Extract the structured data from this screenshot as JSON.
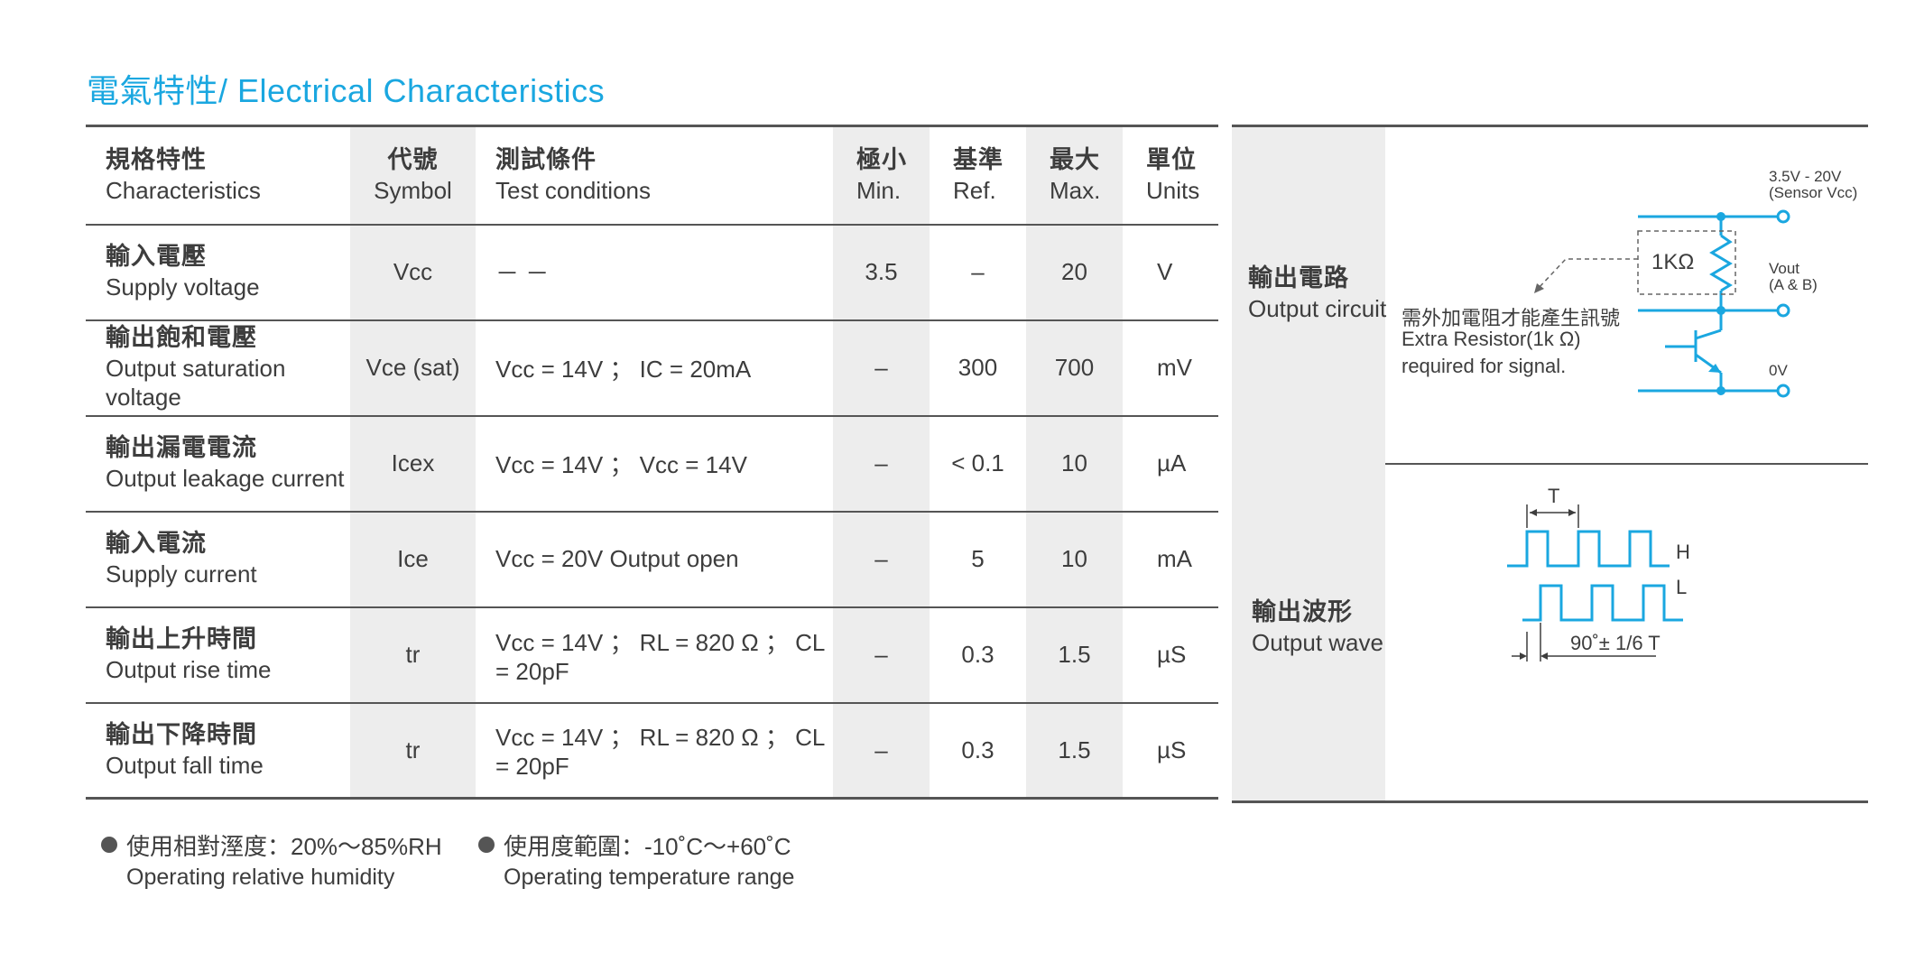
{
  "title": "電氣特性/ Electrical Characteristics",
  "table": {
    "headers": {
      "characteristics": {
        "zh": "規格特性",
        "en": "Characteristics"
      },
      "symbol": {
        "zh": "代號",
        "en": "Symbol"
      },
      "conditions": {
        "zh": "測試條件",
        "en": "Test conditions"
      },
      "min": {
        "zh": "極小",
        "en": "Min."
      },
      "ref": {
        "zh": "基準",
        "en": "Ref."
      },
      "max": {
        "zh": "最大",
        "en": "Max."
      },
      "units": {
        "zh": "單位",
        "en": "Units"
      }
    },
    "rows": [
      {
        "zh": "輸入電壓",
        "en": "Supply voltage",
        "symbol": "Vcc",
        "conditions": "－ －",
        "min": "3.5",
        "ref": "–",
        "max": "20",
        "unit": "V"
      },
      {
        "zh": "輸出飽和電壓",
        "en": "Output saturation voltage",
        "symbol": "Vce (sat)",
        "conditions": "Vcc = 14V ； IC = 20mA",
        "min": "–",
        "ref": "300",
        "max": "700",
        "unit": "mV"
      },
      {
        "zh": "輸出漏電電流",
        "en": "Output leakage current",
        "symbol": "Icex",
        "conditions": "Vcc = 14V ； Vcc = 14V",
        "min": "–",
        "ref": "< 0.1",
        "max": "10",
        "unit": "µA"
      },
      {
        "zh": "輸入電流",
        "en": "Supply current",
        "symbol": "Ice",
        "conditions": "Vcc = 20V Output open",
        "min": "–",
        "ref": "5",
        "max": "10",
        "unit": "mA"
      },
      {
        "zh": "輸出上升時間",
        "en": "Output rise time",
        "symbol": "tr",
        "conditions": "Vcc = 14V ； RL = 820 Ω ； CL = 20pF",
        "min": "–",
        "ref": "0.3",
        "max": "1.5",
        "unit": "µS"
      },
      {
        "zh": "輸出下降時間",
        "en": "Output fall time",
        "symbol": "tr",
        "conditions": "Vcc = 14V ； RL = 820 Ω ； CL = 20pF",
        "min": "–",
        "ref": "0.3",
        "max": "1.5",
        "unit": "µS"
      }
    ]
  },
  "circuit": {
    "label": {
      "zh": "輸出電路",
      "en": "Output circuit"
    },
    "supply": "3.5V - 20V",
    "supply_sub": "(Sensor Vcc)",
    "resistor": "1KΩ",
    "vout": "Vout",
    "vout_sub": "(A & B)",
    "ground": "0V",
    "note_zh": "需外加電阻才能產生訊號",
    "note_en_1": "Extra Resistor(1k Ω)",
    "note_en_2": "required for signal."
  },
  "wave": {
    "label": {
      "zh": "輸出波形",
      "en": "Output wave"
    },
    "period": "T",
    "high": "H",
    "low": "L",
    "phase": "90˚± 1/6 T"
  },
  "footer": {
    "humidity": {
      "zh": "使用相對溼度：20%～85%RH",
      "en": "Operating relative humidity"
    },
    "temperature": {
      "zh": "使用度範圍：-10˚C～+60˚C",
      "en": "Operating temperature range"
    }
  },
  "colors": {
    "accent": "#1aa7e0",
    "text": "#3d3d3d",
    "shade": "#ededed",
    "rule": "#555555"
  }
}
